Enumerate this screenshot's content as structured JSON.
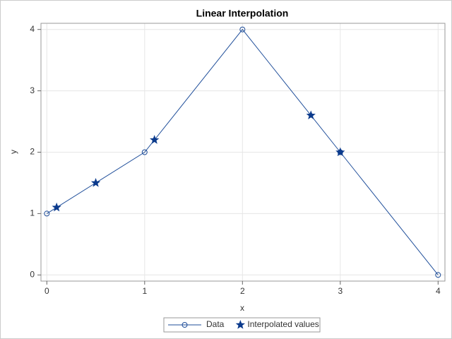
{
  "chart_data": {
    "type": "line",
    "title": "Linear Interpolation",
    "xlabel": "x",
    "ylabel": "y",
    "series": [
      {
        "name": "Data",
        "color": "#1f4e9a",
        "line": true,
        "marker": "circle",
        "x": [
          0,
          1,
          2,
          3,
          4
        ],
        "values": [
          1,
          2,
          4,
          2,
          0
        ]
      },
      {
        "name": "Interpolated values",
        "color": "#0b3a8c",
        "line": false,
        "marker": "star",
        "x": [
          0.1,
          0.5,
          1.1,
          2.7,
          3
        ],
        "values": [
          1.1,
          1.5,
          2.2,
          2.6,
          2
        ]
      }
    ],
    "xlim": [
      -0.06,
      4.07
    ],
    "xticks": [
      0,
      1,
      2,
      3,
      4
    ],
    "ylim": [
      -0.1,
      4.1
    ],
    "yticks": [
      0,
      1,
      2,
      3,
      4
    ],
    "grid": true,
    "legend": "bottom"
  }
}
